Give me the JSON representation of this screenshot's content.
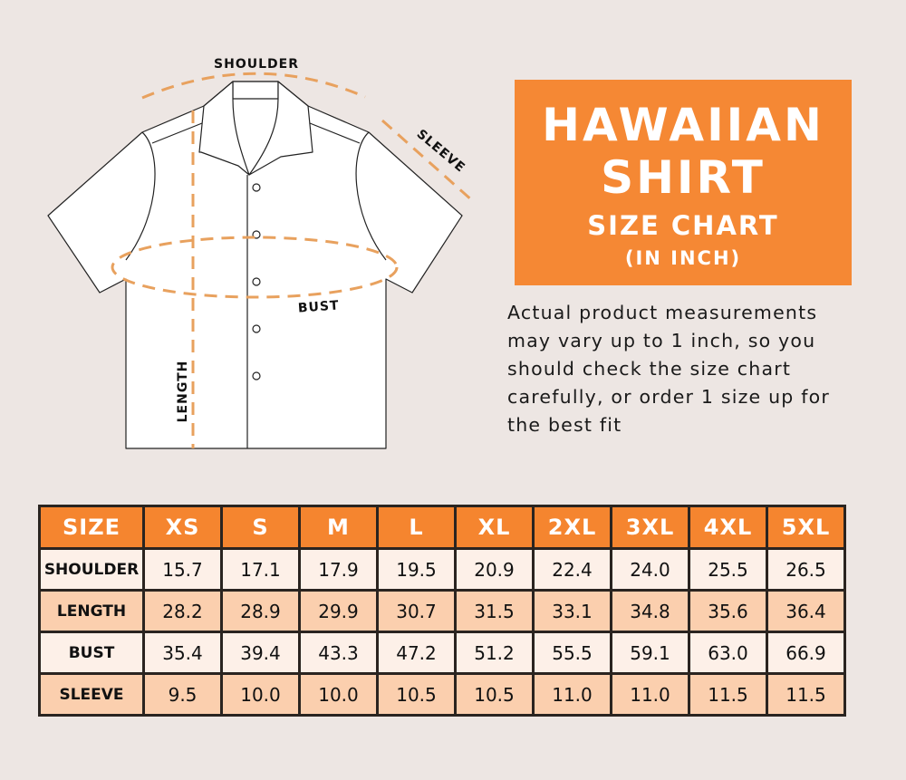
{
  "diagram": {
    "labels": {
      "shoulder": "SHOULDER",
      "sleeve": "SLEEVE",
      "bust": "BUST",
      "length": "LENGTH"
    },
    "dash_color": "#e8a15e"
  },
  "title": {
    "line1": "HAWAIIAN",
    "line2": "SHIRT",
    "line3": "SIZE CHART",
    "line4": "(IN INCH)",
    "bg_color": "#f58834"
  },
  "note": {
    "lines": [
      "Actual product measurements",
      "may vary up to 1 inch, so you",
      "should check the size chart",
      "carefully, or order 1 size up for",
      "the best fit"
    ]
  },
  "table": {
    "header": [
      "SIZE",
      "XS",
      "S",
      "M",
      "L",
      "XL",
      "2XL",
      "3XL",
      "4XL",
      "5XL"
    ],
    "rows": [
      {
        "label": "SHOULDER",
        "values": [
          "15.7",
          "17.1",
          "17.9",
          "19.5",
          "20.9",
          "22.4",
          "24.0",
          "25.5",
          "26.5"
        ]
      },
      {
        "label": "LENGTH",
        "values": [
          "28.2",
          "28.9",
          "29.9",
          "30.7",
          "31.5",
          "33.1",
          "34.8",
          "35.6",
          "36.4"
        ]
      },
      {
        "label": "BUST",
        "values": [
          "35.4",
          "39.4",
          "43.3",
          "47.2",
          "51.2",
          "55.5",
          "59.1",
          "63.0",
          "66.9"
        ]
      },
      {
        "label": "SLEEVE",
        "values": [
          "9.5",
          "10.0",
          "10.0",
          "10.5",
          "10.5",
          "11.0",
          "11.0",
          "11.5",
          "11.5"
        ]
      }
    ],
    "header_color": "#f5852f",
    "row_colors": [
      "#fdf0e8",
      "#fbcfae"
    ]
  }
}
